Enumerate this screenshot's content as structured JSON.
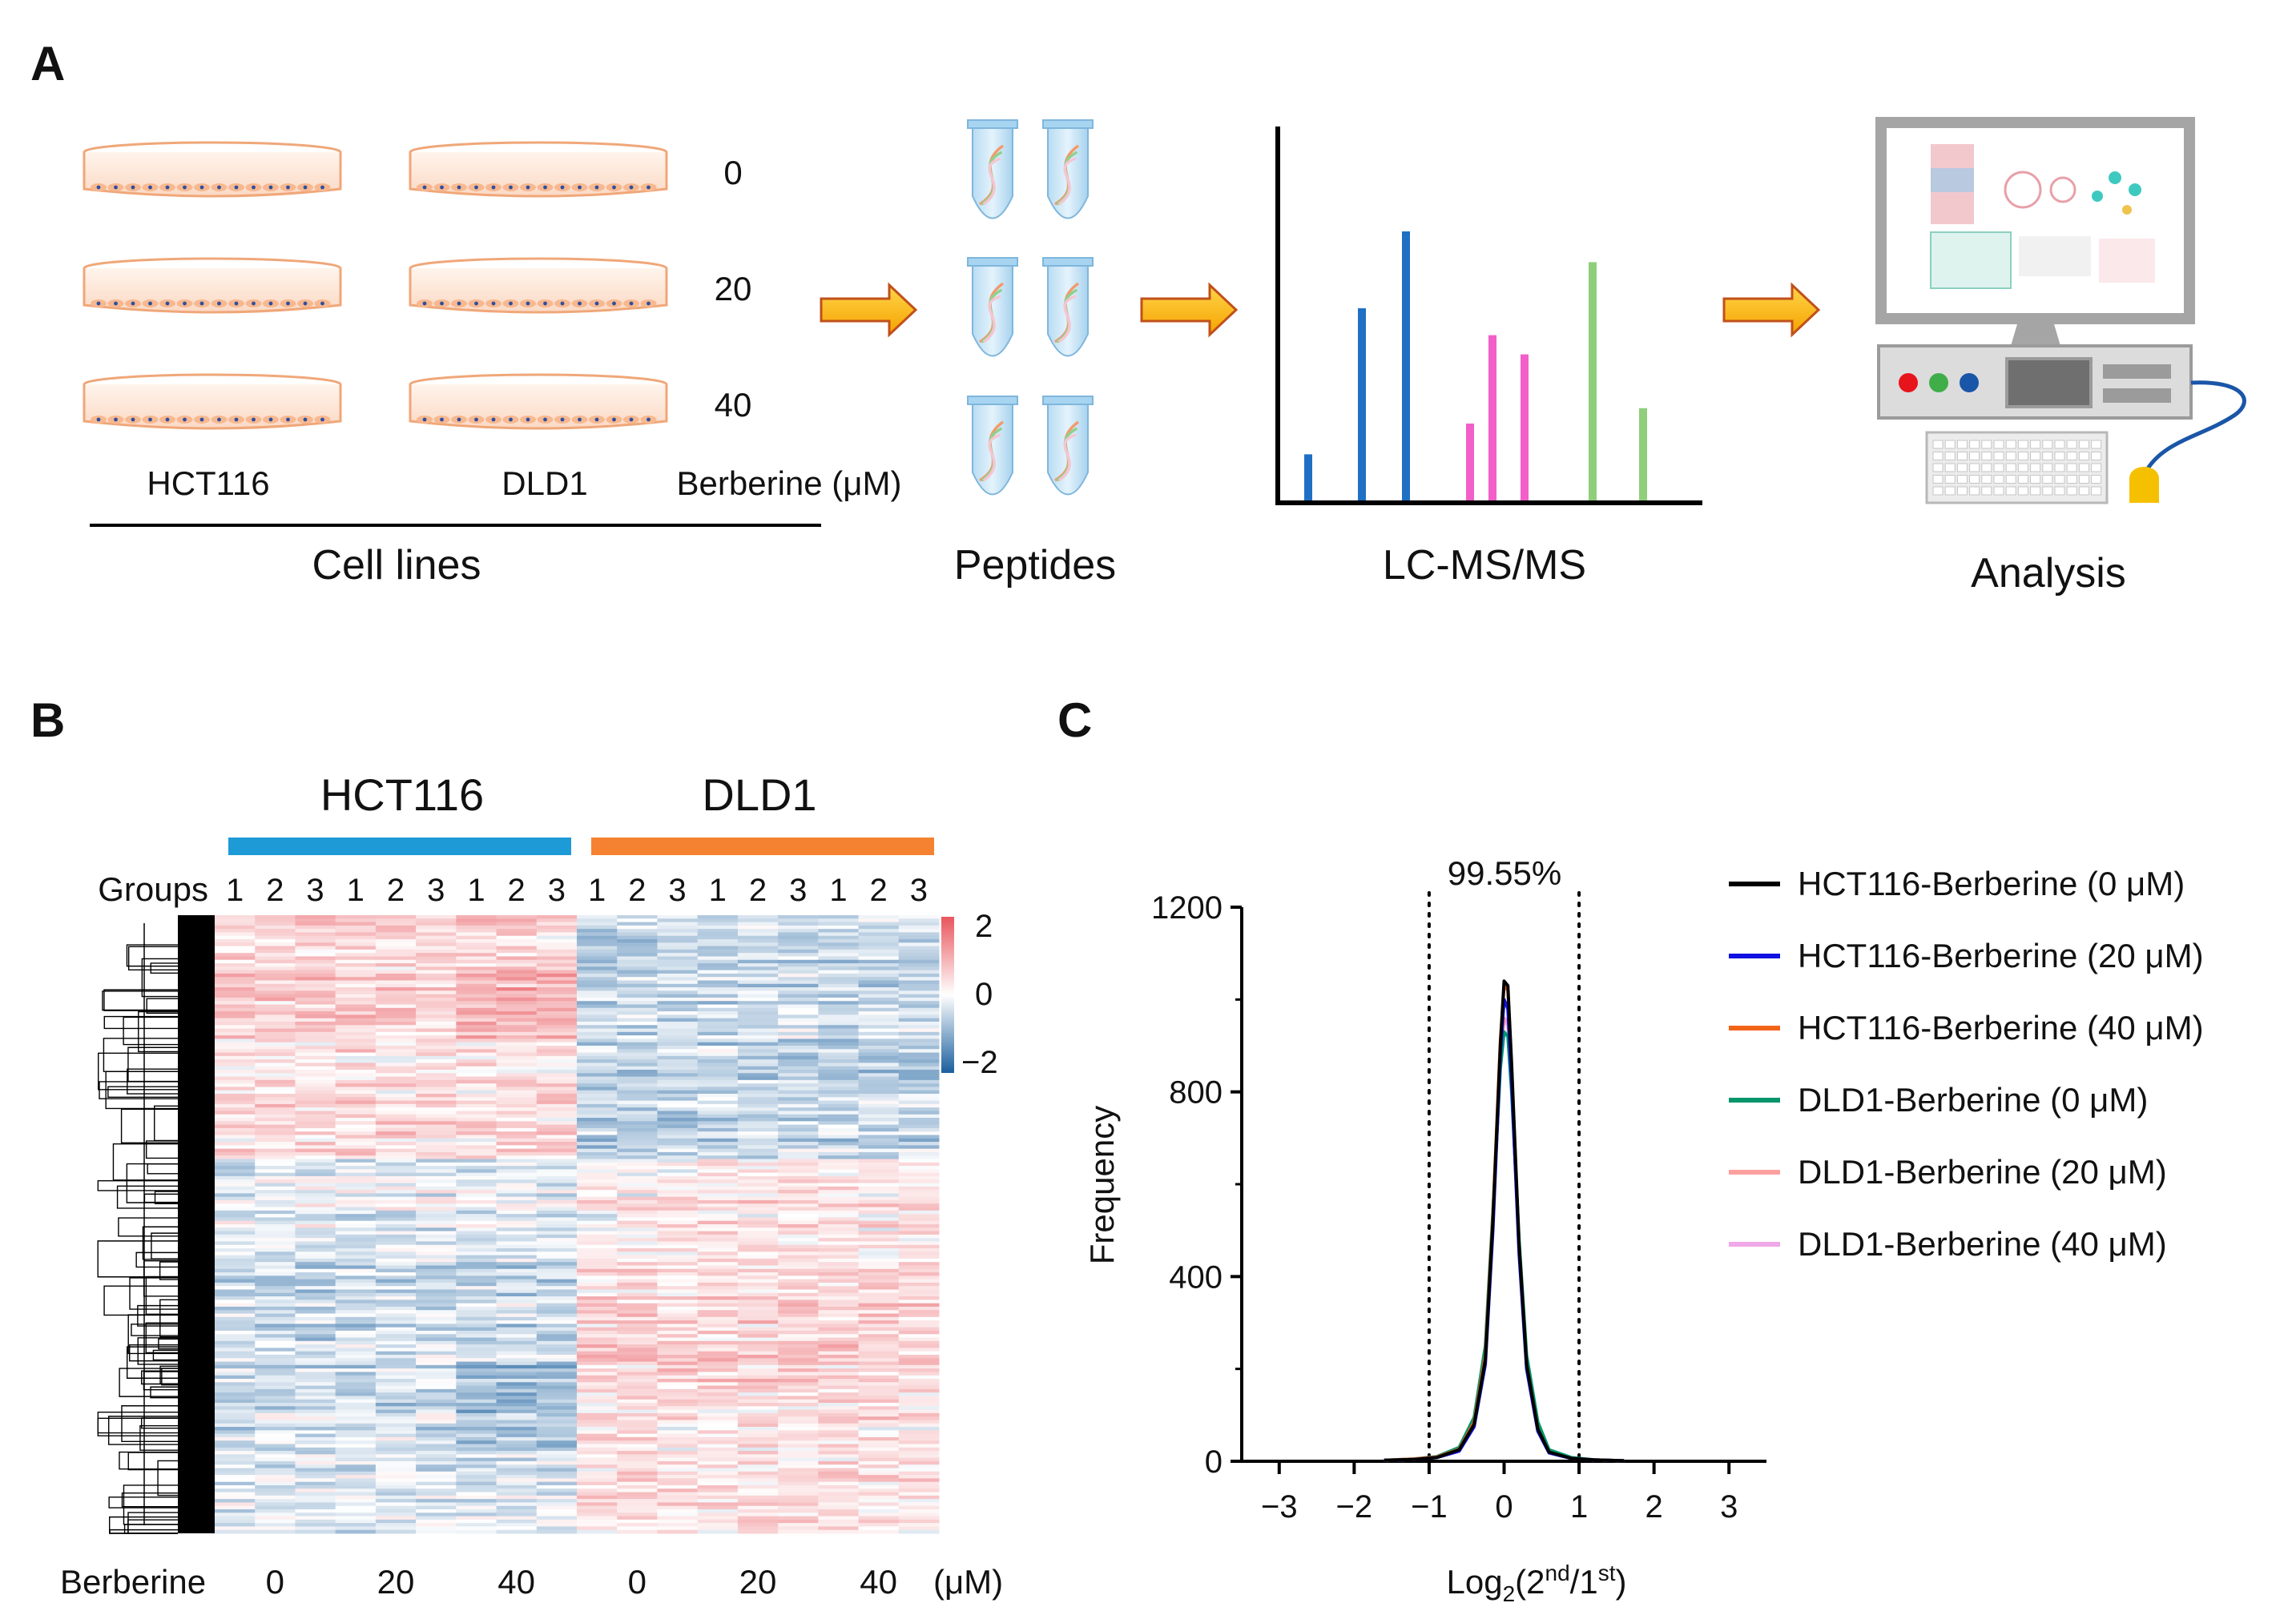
{
  "panelA": {
    "letter": "A",
    "doses": [
      "0",
      "20",
      "40"
    ],
    "cell_labels": [
      "HCT116",
      "DLD1"
    ],
    "dose_label": "Berberine (μM)",
    "group_label": "Cell lines",
    "steps": [
      "Peptides",
      "LC-MS/MS",
      "Analysis"
    ],
    "ms_bars": [
      {
        "color": "#1f6fc5",
        "values": [
          0.12,
          0.5,
          0.7
        ]
      },
      {
        "color": "#f25fc8",
        "values": [
          0.2,
          0.43,
          0.38
        ]
      },
      {
        "color": "#8fcf7c",
        "values": [
          0.62,
          0.24
        ]
      }
    ],
    "computer_button_colors": [
      "#e8141b",
      "#3fae49",
      "#1a56a8"
    ],
    "mouse_color": "#f5c000"
  },
  "panelB": {
    "letter": "B",
    "groups": [
      {
        "name": "HCT116",
        "color": "#1e9ad6"
      },
      {
        "name": "DLD1",
        "color": "#f58230"
      }
    ],
    "groups_label": "Groups",
    "replicates": [
      "1",
      "2",
      "3",
      "1",
      "2",
      "3",
      "1",
      "2",
      "3",
      "1",
      "2",
      "3",
      "1",
      "2",
      "3",
      "1",
      "2",
      "3"
    ],
    "berberine_label": "Berberine",
    "doses": [
      "0",
      "20",
      "40",
      "0",
      "20",
      "40"
    ],
    "unit": "(μM)",
    "colorbar_ticks": [
      "2",
      "0",
      "−2"
    ],
    "colors": {
      "high": "#e8565d",
      "mid": "#ffffff",
      "low": "#1a5f9e"
    }
  },
  "panelC": {
    "letter": "C",
    "annotation": "99.55%",
    "ylabel": "Frequency",
    "xlabel_base": "Log",
    "xlabel_sub": "2",
    "xlabel_open": "(2",
    "xlabel_sup1": "nd",
    "xlabel_mid": "/1",
    "xlabel_sup2": "st",
    "xlabel_close": ")"
  },
  "chart_data": {
    "type": "line",
    "title": "",
    "xlabel": "Log2(2nd/1st)",
    "ylabel": "Frequency",
    "xlim": [
      -3.5,
      3.5
    ],
    "ylim": [
      0,
      1200
    ],
    "xticks": [
      "−3",
      "−2",
      "−1",
      "0",
      "1",
      "2",
      "3"
    ],
    "yticks": [
      "0",
      "400",
      "800",
      "1200"
    ],
    "vlines": [
      -1,
      1
    ],
    "x": [
      -1.6,
      -1.2,
      -0.9,
      -0.6,
      -0.4,
      -0.25,
      -0.15,
      -0.05,
      0.0,
      0.05,
      0.1,
      0.2,
      0.3,
      0.45,
      0.6,
      0.9,
      1.2,
      1.6
    ],
    "series": [
      {
        "name": "HCT116-Berberine (0 μM)",
        "color": "#000000",
        "values": [
          2,
          4,
          8,
          25,
          80,
          220,
          520,
          900,
          1040,
          1030,
          860,
          470,
          210,
          70,
          20,
          6,
          3,
          1
        ]
      },
      {
        "name": "HCT116-Berberine (20 μM)",
        "color": "#1010e0",
        "values": [
          2,
          4,
          8,
          22,
          75,
          210,
          500,
          880,
          1000,
          980,
          820,
          450,
          200,
          65,
          18,
          6,
          3,
          1
        ]
      },
      {
        "name": "HCT116-Berberine (40 μM)",
        "color": "#f26419",
        "values": [
          2,
          5,
          9,
          26,
          85,
          230,
          530,
          910,
          1030,
          1020,
          850,
          460,
          205,
          68,
          19,
          6,
          3,
          1
        ]
      },
      {
        "name": "DLD1-Berberine (0 μM)",
        "color": "#00956a",
        "values": [
          2,
          5,
          10,
          30,
          95,
          250,
          540,
          850,
          930,
          920,
          800,
          480,
          230,
          85,
          25,
          8,
          3,
          1
        ]
      },
      {
        "name": "DLD1-Berberine (20 μM)",
        "color": "#ffa0a0",
        "values": [
          2,
          4,
          9,
          27,
          88,
          235,
          525,
          870,
          960,
          950,
          820,
          465,
          215,
          72,
          21,
          7,
          3,
          1
        ]
      },
      {
        "name": "DLD1-Berberine (40 μM)",
        "color": "#f0a8e8",
        "values": [
          2,
          4,
          9,
          26,
          86,
          232,
          520,
          865,
          955,
          945,
          815,
          462,
          212,
          70,
          20,
          7,
          3,
          1
        ]
      }
    ]
  }
}
